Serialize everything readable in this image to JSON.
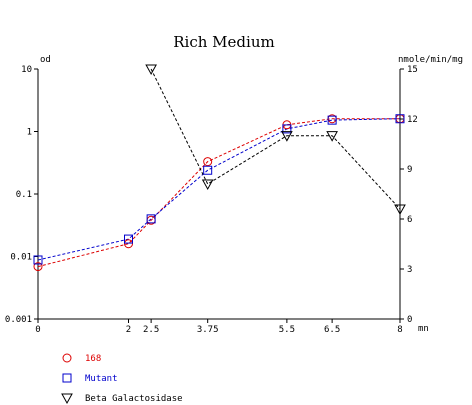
{
  "chart_data": {
    "type": "line",
    "title": "Rich Medium",
    "ylabel_left": "od",
    "ylabel_right": "nmole/min/mg",
    "xlabel": "mn",
    "x_ticks": [
      {
        "value": 0,
        "label": "0"
      },
      {
        "value": 2,
        "label": "2"
      },
      {
        "value": 2.5,
        "label": "2.5"
      },
      {
        "value": 3.75,
        "label": "3.75"
      },
      {
        "value": 5.5,
        "label": "5.5"
      },
      {
        "value": 6.5,
        "label": "6.5"
      },
      {
        "value": 8,
        "label": "8"
      }
    ],
    "y_left_ticks": [
      {
        "value": 10,
        "label": "10"
      },
      {
        "value": 1,
        "label": "1"
      },
      {
        "value": 0.1,
        "label": "0.1"
      },
      {
        "value": 0.01,
        "label": "0.01"
      },
      {
        "value": 0.001,
        "label": "0.001"
      }
    ],
    "y_right_ticks": [
      {
        "value": 15,
        "label": "15"
      },
      {
        "value": 12,
        "label": "12"
      },
      {
        "value": 9,
        "label": "9"
      },
      {
        "value": 6,
        "label": "6"
      },
      {
        "value": 3,
        "label": "3"
      },
      {
        "value": 0,
        "label": "0"
      }
    ],
    "xlim": [
      0,
      8
    ],
    "ylim_left": [
      0.001,
      10
    ],
    "y_left_scale": "log",
    "ylim_right": [
      0,
      15
    ],
    "grid": false,
    "legend_position": "bottom-left",
    "series": [
      {
        "name": "168",
        "axis": "left",
        "marker": "circle",
        "color": "#dd0000",
        "line_style": "dashed",
        "x": [
          0,
          2,
          2.5,
          3.75,
          5.5,
          6.5,
          8
        ],
        "y": [
          0.0069,
          0.016,
          0.038,
          0.33,
          1.28,
          1.6,
          1.6
        ]
      },
      {
        "name": "Mutant",
        "axis": "left",
        "marker": "square",
        "color": "#0000cc",
        "line_style": "dashed",
        "x": [
          0,
          2,
          2.5,
          3.75,
          5.5,
          6.5,
          8
        ],
        "y": [
          0.0088,
          0.019,
          0.04,
          0.24,
          1.1,
          1.52,
          1.6
        ]
      },
      {
        "name": "Beta Galactosidase",
        "axis": "right",
        "marker": "triangle-down",
        "color": "#000000",
        "line_style": "dashed",
        "x": [
          2.5,
          3.75,
          5.5,
          6.5,
          8
        ],
        "y": [
          15,
          8.1,
          11,
          11,
          6.6
        ]
      }
    ]
  }
}
